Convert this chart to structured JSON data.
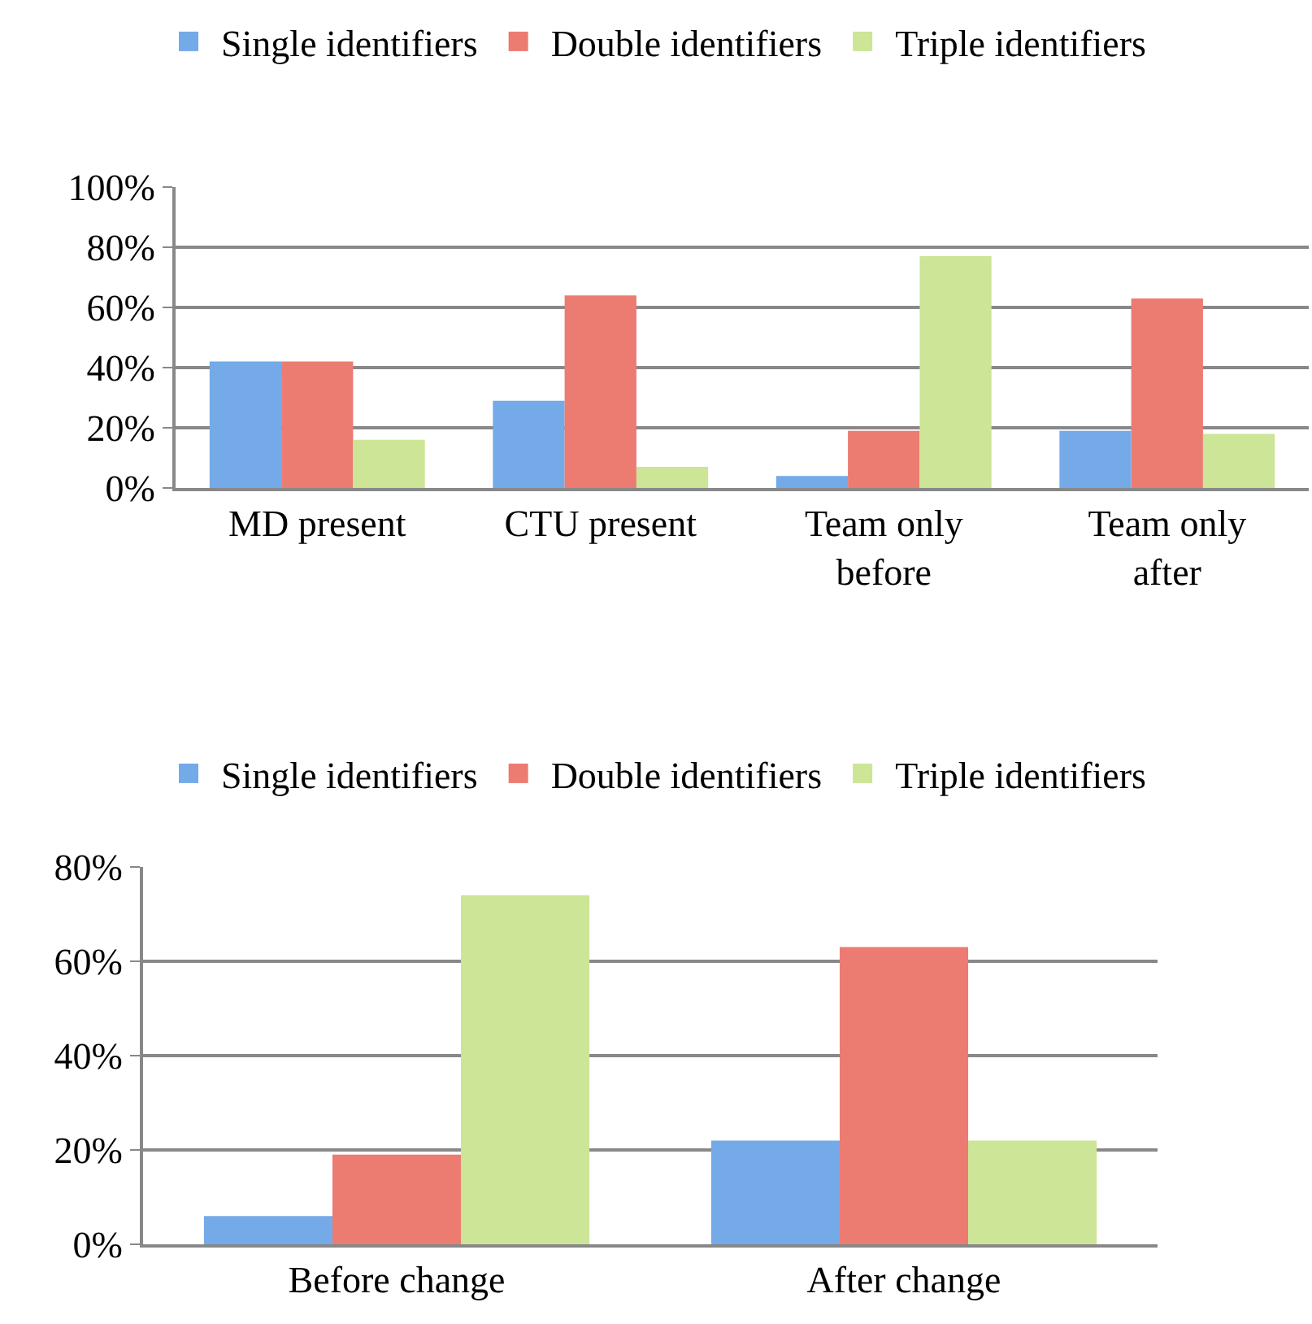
{
  "chart_data": [
    {
      "type": "bar",
      "categories": [
        "MD present",
        "CTU present",
        "Team only before",
        "Team only after"
      ],
      "series": [
        {
          "name": "Single identifiers",
          "color": "#74aae8",
          "values": [
            42,
            29,
            4,
            19
          ]
        },
        {
          "name": "Double identifiers",
          "color": "#ec7b72",
          "values": [
            42,
            64,
            19,
            63
          ]
        },
        {
          "name": "Triple identifiers",
          "color": "#cce596",
          "values": [
            16,
            7,
            77,
            18
          ]
        }
      ],
      "ylim": [
        0,
        100
      ],
      "yticks": [
        {
          "value": 0,
          "label": "0%"
        },
        {
          "value": 20,
          "label": "20%"
        },
        {
          "value": 40,
          "label": "40%"
        },
        {
          "value": 60,
          "label": "60%"
        },
        {
          "value": 80,
          "label": "80%"
        },
        {
          "value": 100,
          "label": "100%"
        }
      ],
      "grid": "y",
      "legend": "top"
    },
    {
      "type": "bar",
      "categories": [
        "Before change",
        "After change"
      ],
      "series": [
        {
          "name": "Single identifiers",
          "color": "#74aae8",
          "values": [
            6,
            22
          ]
        },
        {
          "name": "Double identifiers",
          "color": "#ec7b72",
          "values": [
            19,
            63
          ]
        },
        {
          "name": "Triple identifiers",
          "color": "#cce596",
          "values": [
            74,
            22
          ]
        }
      ],
      "ylim": [
        0,
        80
      ],
      "yticks": [
        {
          "value": 0,
          "label": "0%"
        },
        {
          "value": 20,
          "label": "20%"
        },
        {
          "value": 40,
          "label": "40%"
        },
        {
          "value": 60,
          "label": "60%"
        },
        {
          "value": 80,
          "label": "80%"
        }
      ],
      "grid": "y",
      "legend": "top"
    }
  ]
}
